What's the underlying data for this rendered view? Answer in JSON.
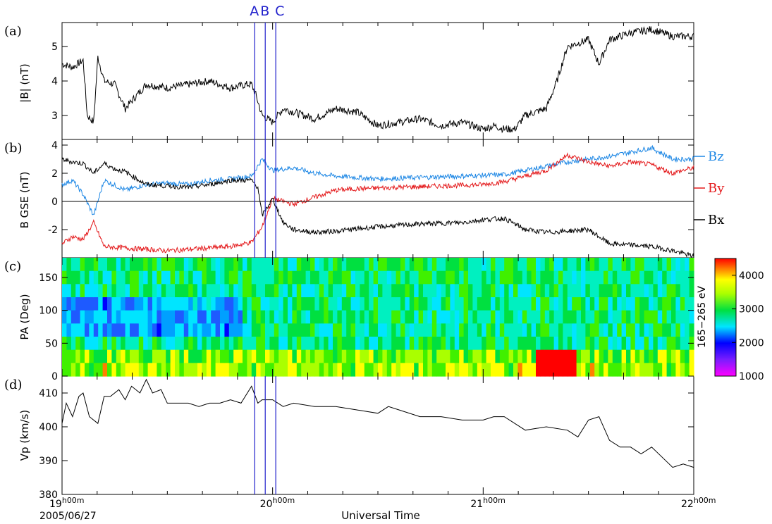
{
  "chart_data": [
    {
      "panel": "(a)",
      "type": "line",
      "ylabel": "|B| (nT)",
      "ylim": [
        2.3,
        5.7
      ],
      "yticks": [
        "3",
        "4",
        "5"
      ],
      "series": [
        {
          "color": "#000000",
          "x": [
            19.0,
            19.05,
            19.1,
            19.12,
            19.15,
            19.17,
            19.2,
            19.25,
            19.3,
            19.4,
            19.5,
            19.6,
            19.7,
            19.8,
            19.88,
            19.9,
            19.92,
            19.95,
            20.0,
            20.05,
            20.1,
            20.2,
            20.3,
            20.4,
            20.45,
            20.5,
            20.6,
            20.7,
            20.8,
            20.9,
            21.0,
            21.05,
            21.1,
            21.15,
            21.2,
            21.3,
            21.35,
            21.4,
            21.5,
            21.55,
            21.6,
            21.7,
            21.8,
            21.9,
            22.0
          ],
          "y": [
            4.5,
            4.4,
            4.6,
            3.0,
            2.8,
            4.7,
            4.0,
            3.9,
            3.2,
            3.9,
            3.8,
            3.9,
            4.0,
            3.8,
            3.9,
            3.9,
            3.6,
            3.0,
            2.8,
            3.2,
            3.1,
            2.9,
            3.2,
            3.1,
            2.9,
            2.7,
            2.8,
            2.9,
            2.7,
            2.8,
            2.6,
            2.7,
            2.6,
            2.6,
            3.0,
            3.2,
            4.0,
            5.0,
            5.2,
            4.5,
            5.2,
            5.4,
            5.5,
            5.3,
            5.3
          ]
        }
      ]
    },
    {
      "panel": "(b)",
      "type": "line",
      "ylabel": "B GSE (nT)",
      "ylim": [
        -4,
        4.4
      ],
      "yticks": [
        "-2",
        "0",
        "2",
        "4"
      ],
      "legend": [
        "Bz",
        "By",
        "Bx"
      ],
      "series": [
        {
          "name": "Bz",
          "color": "#1f88e5",
          "x": [
            19.0,
            19.05,
            19.1,
            19.15,
            19.2,
            19.3,
            19.4,
            19.5,
            19.6,
            19.7,
            19.8,
            19.9,
            19.95,
            20.0,
            20.05,
            20.1,
            20.2,
            20.3,
            20.5,
            20.7,
            20.9,
            21.1,
            21.2,
            21.3,
            21.4,
            21.5,
            21.6,
            21.7,
            21.8,
            21.9,
            22.0
          ],
          "y": [
            1.2,
            1.5,
            0.5,
            -1.0,
            1.5,
            0.8,
            1.2,
            1.3,
            1.2,
            1.5,
            1.6,
            1.8,
            3.0,
            2.2,
            2.3,
            2.4,
            2.0,
            1.8,
            1.6,
            1.7,
            1.8,
            1.9,
            2.2,
            2.5,
            2.8,
            3.0,
            3.2,
            3.5,
            3.8,
            3.0,
            3.0
          ]
        },
        {
          "name": "By",
          "color": "#e41a1c",
          "x": [
            19.0,
            19.05,
            19.1,
            19.15,
            19.2,
            19.3,
            19.4,
            19.5,
            19.6,
            19.7,
            19.8,
            19.9,
            19.95,
            20.0,
            20.1,
            20.2,
            20.3,
            20.4,
            20.6,
            20.8,
            21.0,
            21.1,
            21.2,
            21.3,
            21.4,
            21.5,
            21.6,
            21.7,
            21.8,
            21.9,
            22.0
          ],
          "y": [
            -3.0,
            -2.5,
            -2.7,
            -1.5,
            -3.2,
            -3.3,
            -3.4,
            -3.5,
            -3.4,
            -3.3,
            -3.2,
            -2.9,
            -1.8,
            0.2,
            -0.2,
            0.3,
            0.8,
            0.9,
            1.0,
            1.1,
            1.2,
            1.4,
            1.8,
            2.2,
            3.3,
            2.8,
            2.5,
            2.8,
            2.6,
            2.0,
            2.4
          ]
        },
        {
          "name": "Bx",
          "color": "#000000",
          "x": [
            19.0,
            19.05,
            19.1,
            19.15,
            19.2,
            19.25,
            19.3,
            19.4,
            19.5,
            19.6,
            19.7,
            19.8,
            19.9,
            19.93,
            19.95,
            20.0,
            20.05,
            20.1,
            20.2,
            20.3,
            20.5,
            20.7,
            20.9,
            21.0,
            21.1,
            21.2,
            21.3,
            21.4,
            21.5,
            21.6,
            21.7,
            21.8,
            21.9,
            22.0
          ],
          "y": [
            3.0,
            2.8,
            2.7,
            2.0,
            2.7,
            2.3,
            2.1,
            1.2,
            1.1,
            1.0,
            1.2,
            1.5,
            1.5,
            1.0,
            -1.0,
            0.2,
            -1.5,
            -2.0,
            -2.2,
            -2.1,
            -1.8,
            -1.6,
            -1.5,
            -1.3,
            -1.2,
            -2.0,
            -2.2,
            -2.1,
            -2.0,
            -3.0,
            -3.1,
            -3.2,
            -3.5,
            -3.9
          ]
        }
      ]
    },
    {
      "panel": "(c)",
      "type": "heatmap",
      "ylabel": "PA (Deg)",
      "ylim": [
        0,
        180
      ],
      "yticks": [
        "0",
        "50",
        "100",
        "150"
      ],
      "colorbar": {
        "label": "165−265 eV",
        "range": [
          1000,
          4500
        ],
        "ticks": [
          "1000",
          "2000",
          "3000",
          "4000"
        ]
      }
    },
    {
      "panel": "(d)",
      "type": "line",
      "ylabel": "Vp (km/s)",
      "ylim": [
        380,
        415
      ],
      "yticks": [
        "380",
        "390",
        "400",
        "410"
      ],
      "series": [
        {
          "color": "#000000",
          "x": [
            19.0,
            19.02,
            19.05,
            19.08,
            19.1,
            19.13,
            19.17,
            19.2,
            19.23,
            19.27,
            19.3,
            19.33,
            19.37,
            19.4,
            19.43,
            19.47,
            19.5,
            19.55,
            19.6,
            19.65,
            19.7,
            19.75,
            19.8,
            19.85,
            19.9,
            19.93,
            19.95,
            20.0,
            20.05,
            20.1,
            20.2,
            20.3,
            20.4,
            20.5,
            20.55,
            20.6,
            20.7,
            20.8,
            20.9,
            21.0,
            21.05,
            21.1,
            21.2,
            21.3,
            21.4,
            21.45,
            21.5,
            21.55,
            21.6,
            21.65,
            21.7,
            21.75,
            21.8,
            21.85,
            21.9,
            21.95,
            22.0
          ],
          "y": [
            401,
            407,
            403,
            409,
            410,
            403,
            401,
            409,
            409,
            411,
            408,
            412,
            410,
            414,
            410,
            411,
            407,
            407,
            407,
            406,
            407,
            407,
            408,
            407,
            412,
            407,
            408,
            408,
            406,
            407,
            406,
            406,
            405,
            404,
            406,
            405,
            403,
            403,
            402,
            402,
            403,
            403,
            399,
            400,
            399,
            397,
            402,
            403,
            396,
            394,
            394,
            392,
            394,
            391,
            388,
            389,
            388
          ]
        }
      ]
    }
  ],
  "events": [
    "A",
    "B",
    "C"
  ],
  "x_axis": {
    "label": "Universal Time",
    "date": "2005/06/27",
    "ticks": [
      "19",
      "20",
      "21",
      "22"
    ],
    "tick_suffix_h": "h",
    "tick_suffix_m": "00m"
  }
}
